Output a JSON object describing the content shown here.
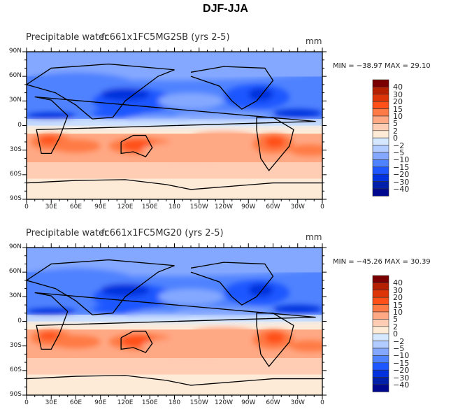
{
  "title": "DJF-JJA",
  "panels": [
    {
      "variable": "Precipitable water",
      "case": "fc661x1FC5MG2SB (yrs 2-5)",
      "units": "mm",
      "min_max": "MIN = −38.97 MAX =  29.10"
    },
    {
      "variable": "Precipitable water",
      "case": "fc661x1FC5MG20 (yrs 2-5)",
      "units": "mm",
      "min_max": "MIN = −45.26 MAX =  30.39"
    }
  ],
  "lat_labels": [
    "90N",
    "60N",
    "30N",
    "0",
    "30S",
    "60S",
    "90S"
  ],
  "lon_labels": [
    "0",
    "30E",
    "60E",
    "90E",
    "120E",
    "150E",
    "180",
    "150W",
    "120W",
    "90W",
    "60W",
    "30W",
    "0"
  ],
  "colorbar": {
    "labels": [
      "40",
      "30",
      "20",
      "15",
      "10",
      "5",
      "2",
      "0",
      "−2",
      "−5",
      "−10",
      "−15",
      "−20",
      "−30",
      "−40"
    ],
    "colors": [
      "#7a0000",
      "#b52000",
      "#de3508",
      "#ff5019",
      "#ff7a45",
      "#ffa884",
      "#ffcdb3",
      "#fdebd8",
      "#d6e8ff",
      "#b3ccff",
      "#84a8ff",
      "#4f82ff",
      "#1f57ff",
      "#0033dd",
      "#0020aa",
      "#000890"
    ]
  }
}
